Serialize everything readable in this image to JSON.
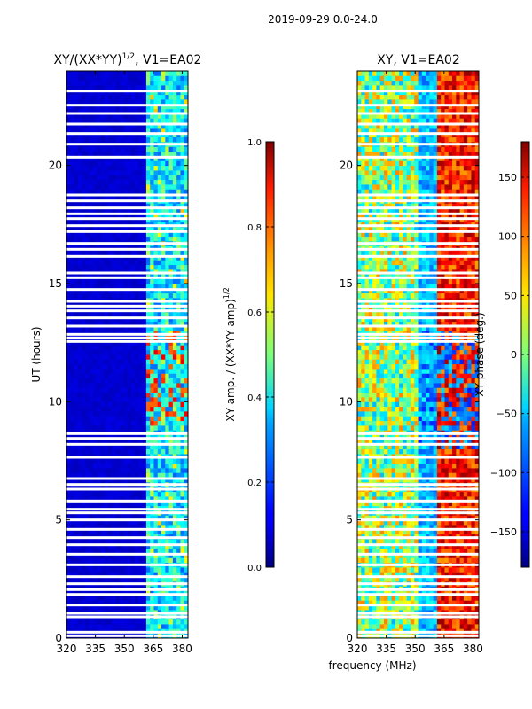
{
  "suptitle": "2019-09-29 0.0-24.0",
  "chart_data": [
    {
      "type": "heatmap",
      "title_prefix": "XY/(XX*YY)",
      "title_exponent": "1/2",
      "title_suffix": ", V1=EA02",
      "xlabel": "",
      "ylabel": "UT (hours)",
      "xlim": [
        320,
        383
      ],
      "ylim": [
        0,
        24
      ],
      "xticks": [
        320,
        335,
        350,
        365,
        380
      ],
      "yticks": [
        0,
        5,
        10,
        15,
        20
      ],
      "colorbar": {
        "label_prefix": "XY amp. / (XX*YY amp)",
        "label_exponent": "1/2",
        "range": [
          0.0,
          1.0
        ],
        "ticks": [
          0.0,
          0.2,
          0.4,
          0.6,
          0.8,
          1.0
        ],
        "tick_labels": [
          "0.0",
          "0.2",
          "0.4",
          "0.6",
          "0.8",
          "1.0"
        ],
        "colormap": "jet"
      }
    },
    {
      "type": "heatmap",
      "title_prefix": "XY, V1=EA02",
      "title_exponent": "",
      "title_suffix": "",
      "xlabel": "frequency (MHz)",
      "ylabel": "",
      "xlim": [
        320,
        383
      ],
      "ylim": [
        0,
        24
      ],
      "xticks": [
        320,
        335,
        350,
        365,
        380
      ],
      "yticks": [
        0,
        5,
        10,
        15,
        20
      ],
      "colorbar": {
        "label_prefix": "XY phase (deg.)",
        "label_exponent": "",
        "range": [
          -180,
          180
        ],
        "ticks": [
          -150,
          -100,
          -50,
          0,
          50,
          100,
          150
        ],
        "tick_labels": [
          "−150",
          "−100",
          "−50",
          "0",
          "50",
          "100",
          "150"
        ],
        "colormap": "jet"
      }
    }
  ],
  "flagged_hours": [
    0.1,
    0.25,
    0.9,
    1.05,
    1.4,
    1.85,
    2.05,
    2.3,
    2.6,
    3.1,
    3.55,
    3.95,
    4.25,
    4.6,
    5.0,
    5.3,
    5.45,
    5.8,
    6.3,
    6.5,
    6.75,
    7.65,
    8.2,
    8.45,
    8.65,
    12.55,
    12.7,
    12.85,
    13.2,
    13.55,
    13.85,
    14.05,
    14.25,
    14.75,
    15.25,
    15.45,
    16.15,
    16.45,
    16.7,
    17.2,
    17.45,
    17.75,
    17.95,
    18.2,
    18.5,
    18.75,
    20.35,
    20.9,
    21.35,
    21.75,
    22.2,
    22.55,
    23.15
  ]
}
